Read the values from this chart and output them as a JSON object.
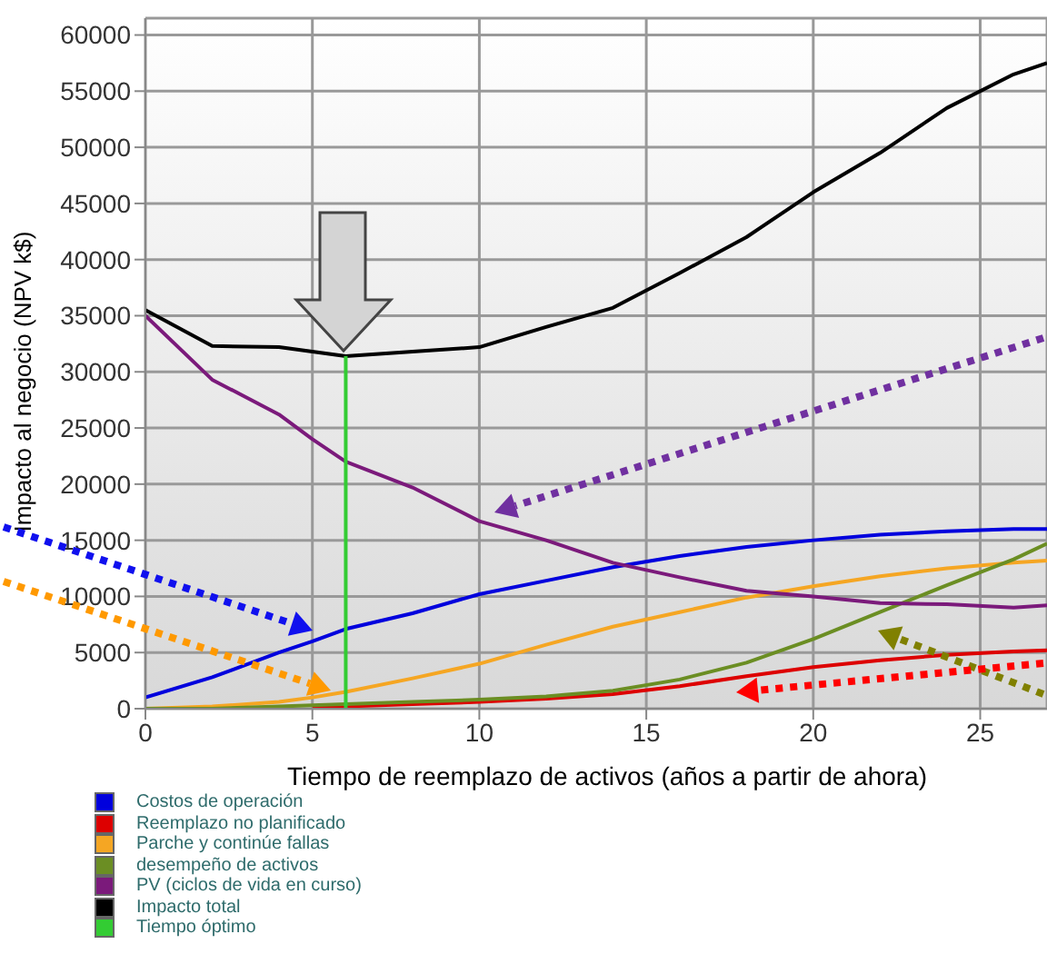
{
  "chart_data": {
    "type": "line",
    "xlabel": "Tiempo de reemplazo de activos (años a partir de ahora)",
    "ylabel": "Impacto al negocio (NPV k$)",
    "x": [
      0,
      2,
      4,
      5,
      6,
      8,
      10,
      12,
      14,
      16,
      18,
      20,
      22,
      24,
      26,
      27
    ],
    "series": [
      {
        "name": "Costos de operación",
        "color": "#0000dd",
        "values": [
          1000,
          2800,
          5000,
          6000,
          7100,
          8500,
          10200,
          11400,
          12600,
          13600,
          14400,
          15000,
          15500,
          15800,
          16000,
          16000
        ]
      },
      {
        "name": "Reemplazo no planificado",
        "color": "#dd0000",
        "values": [
          null,
          null,
          null,
          100,
          200,
          400,
          600,
          900,
          1300,
          2000,
          2900,
          3700,
          4300,
          4800,
          5100,
          5200
        ]
      },
      {
        "name": "Parche y continúe fallas",
        "color": "#f5a623",
        "values": [
          0,
          200,
          600,
          1000,
          1500,
          2700,
          4000,
          5700,
          7300,
          8600,
          9900,
          10900,
          11800,
          12500,
          13000,
          13200
        ]
      },
      {
        "name": "desempeño de activos",
        "color": "#6b8e23",
        "values": [
          0,
          0,
          200,
          300,
          400,
          600,
          800,
          1100,
          1600,
          2600,
          4100,
          6200,
          8600,
          11000,
          13300,
          14700
        ]
      },
      {
        "name": "PV (ciclos de vida en curso)",
        "color": "#7b1a7b",
        "values": [
          35000,
          29300,
          26200,
          24000,
          22000,
          19700,
          16700,
          15000,
          13000,
          11700,
          10500,
          10000,
          9400,
          9300,
          9000,
          9200
        ]
      },
      {
        "name": "Impacto total",
        "color": "#000000",
        "values": [
          35500,
          32300,
          32200,
          31800,
          31400,
          31800,
          32200,
          34000,
          35700,
          38800,
          42000,
          46000,
          49500,
          53500,
          56500,
          57500
        ]
      },
      {
        "name": "Tiempo óptimo",
        "color": "#33cc33",
        "x": [
          6,
          6
        ],
        "values": [
          0,
          31400
        ]
      }
    ],
    "xlim": [
      0,
      27
    ],
    "xticks": [
      0,
      5,
      10,
      15,
      20,
      25
    ],
    "ylim": [
      0,
      61500
    ],
    "yticks": [
      0,
      5000,
      10000,
      15000,
      20000,
      25000,
      30000,
      35000,
      40000,
      45000,
      50000,
      55000,
      60000
    ],
    "grid": true,
    "legend": "bottom left",
    "marker": "none",
    "line_style": "solid"
  }
}
